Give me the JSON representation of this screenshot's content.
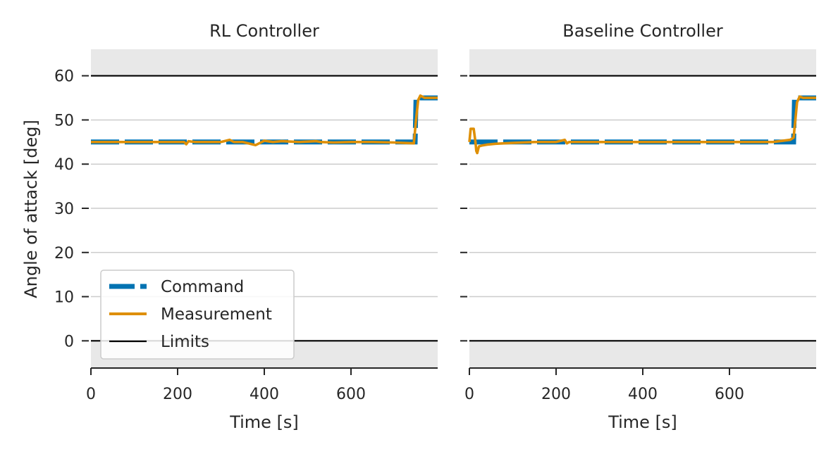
{
  "chart_data": [
    {
      "type": "line",
      "title": "RL Controller",
      "xlabel": "Time [s]",
      "ylabel": "Angle of attack [deg]",
      "xlim": [
        0,
        800
      ],
      "ylim": [
        -6,
        66
      ],
      "xticks": [
        0,
        200,
        400,
        600
      ],
      "yticks": [
        0,
        10,
        20,
        30,
        40,
        50,
        60
      ],
      "grid": "horizontal",
      "shaded_regions": [
        [
          -6,
          0
        ],
        [
          60,
          66
        ]
      ],
      "legend_position": "lower-left",
      "series": [
        {
          "name": "Command",
          "style": "dashed",
          "color": "#0173b2",
          "x": [
            0,
            748,
            750,
            800
          ],
          "y": [
            45,
            45,
            55,
            55
          ]
        },
        {
          "name": "Measurement",
          "style": "solid",
          "color": "#de8f05",
          "x": [
            0,
            100,
            215,
            220,
            225,
            240,
            260,
            300,
            320,
            330,
            350,
            380,
            390,
            400,
            420,
            440,
            480,
            520,
            530,
            560,
            600,
            650,
            700,
            745,
            750,
            755,
            760,
            770,
            800
          ],
          "y": [
            45,
            45,
            45,
            44.5,
            45.2,
            45,
            45,
            45,
            45.5,
            45,
            45,
            44.3,
            44.8,
            45.3,
            45,
            45.2,
            45,
            45.2,
            45,
            44.9,
            45,
            45,
            44.9,
            44.7,
            50,
            54.5,
            55.5,
            55,
            55
          ]
        },
        {
          "name": "Limits",
          "style": "solid",
          "color": "#000000",
          "x": [
            0,
            800
          ],
          "y": [
            60,
            60
          ],
          "y2": [
            0,
            0
          ]
        }
      ]
    },
    {
      "type": "line",
      "title": "Baseline Controller",
      "xlabel": "Time [s]",
      "ylabel": "",
      "xlim": [
        0,
        800
      ],
      "ylim": [
        -6,
        66
      ],
      "xticks": [
        0,
        200,
        400,
        600
      ],
      "yticks": [
        0,
        10,
        20,
        30,
        40,
        50,
        60
      ],
      "grid": "horizontal",
      "shaded_regions": [
        [
          -6,
          0
        ],
        [
          60,
          66
        ]
      ],
      "series": [
        {
          "name": "Command",
          "style": "dashed",
          "color": "#0173b2",
          "x": [
            0,
            748,
            750,
            800
          ],
          "y": [
            45,
            45,
            55,
            55
          ]
        },
        {
          "name": "Measurement",
          "style": "solid",
          "color": "#de8f05",
          "x": [
            0,
            3,
            5,
            10,
            14,
            16,
            18,
            22,
            28,
            40,
            60,
            100,
            150,
            200,
            220,
            225,
            230,
            300,
            400,
            500,
            600,
            700,
            740,
            748,
            752,
            756,
            762,
            770,
            800
          ],
          "y": [
            45,
            48,
            48,
            48,
            45,
            43,
            42.5,
            44,
            44.2,
            44.4,
            44.6,
            44.8,
            45,
            45,
            45.5,
            44.7,
            45,
            45,
            45,
            45,
            45,
            45,
            45.5,
            46,
            50,
            54,
            55.3,
            55,
            55
          ]
        },
        {
          "name": "Limits",
          "style": "solid",
          "color": "#000000",
          "x": [
            0,
            800
          ],
          "y": [
            60,
            60
          ],
          "y2": [
            0,
            0
          ]
        }
      ]
    }
  ],
  "legend": {
    "items": [
      {
        "label": "Command",
        "style": "dashed",
        "color": "#0173b2"
      },
      {
        "label": "Measurement",
        "style": "solid",
        "color": "#de8f05"
      },
      {
        "label": "Limits",
        "style": "solid",
        "color": "#000000"
      }
    ]
  }
}
